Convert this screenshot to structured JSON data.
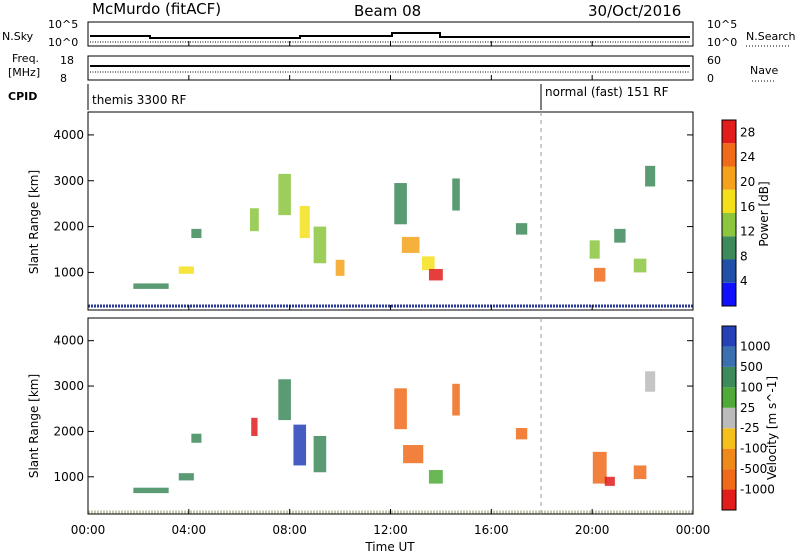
{
  "header": {
    "left_title": "McMurdo (fitACF)",
    "center_title": "Beam 08",
    "right_title": "30/Oct/2016"
  },
  "noise_panel": {
    "left_label": "N.Sky",
    "right_label": "N.Search",
    "left_ticks": [
      "10^5",
      "10^0"
    ],
    "right_ticks": [
      "10^5",
      "10^0"
    ]
  },
  "freq_panel": {
    "left_label_top": "Freq.",
    "left_label_bottom": "[MHz]",
    "right_label": "Nave",
    "left_ticks": [
      "18",
      "8"
    ],
    "right_ticks": [
      "60",
      "0"
    ]
  },
  "cpid_panel": {
    "label": "CPID",
    "mode_1": "themis 3300 RF",
    "mode_2": "normal (fast) 151 RF"
  },
  "x_axis": {
    "label": "Time UT",
    "ticks": [
      "00:00",
      "04:00",
      "08:00",
      "12:00",
      "16:00",
      "20:00",
      "00:00"
    ]
  },
  "chart_data": [
    {
      "type": "heatmap",
      "title": "",
      "xlabel": "Time UT",
      "ylabel": "Slant Range [km]",
      "x_ticks": [
        "00:00",
        "04:00",
        "08:00",
        "12:00",
        "16:00",
        "20:00",
        "00:00"
      ],
      "y_ticks": [
        1000,
        2000,
        3000,
        4000
      ],
      "xlim_hours": [
        0,
        24
      ],
      "ylim_km": [
        180,
        4500
      ],
      "colorbar_label": "Power [dB]",
      "colorbar_ticks": [
        4,
        8,
        12,
        16,
        20,
        24,
        28
      ],
      "colorbar_range": [
        0,
        30
      ],
      "colors": [
        "#1010ff",
        "#2050a8",
        "#3d8a5a",
        "#8cc63f",
        "#f3e01a",
        "#f4a21c",
        "#ef6b1a",
        "#e21b1b"
      ],
      "patches": [
        {
          "t": 2.5,
          "r": 700,
          "w": 1.4,
          "h": 120,
          "v": 8
        },
        {
          "t": 3.9,
          "r": 1050,
          "w": 0.6,
          "h": 160,
          "v": 16
        },
        {
          "t": 4.3,
          "r": 1850,
          "w": 0.4,
          "h": 200,
          "v": 10
        },
        {
          "t": 6.6,
          "r": 2150,
          "w": 0.35,
          "h": 500,
          "v": 14
        },
        {
          "t": 7.8,
          "r": 2700,
          "w": 0.5,
          "h": 900,
          "v": 12
        },
        {
          "t": 8.6,
          "r": 2100,
          "w": 0.4,
          "h": 700,
          "v": 18
        },
        {
          "t": 9.2,
          "r": 1600,
          "w": 0.5,
          "h": 800,
          "v": 12
        },
        {
          "t": 10.0,
          "r": 1100,
          "w": 0.35,
          "h": 350,
          "v": 22
        },
        {
          "t": 12.4,
          "r": 2500,
          "w": 0.5,
          "h": 900,
          "v": 10
        },
        {
          "t": 12.8,
          "r": 1600,
          "w": 0.7,
          "h": 350,
          "v": 20
        },
        {
          "t": 13.5,
          "r": 1200,
          "w": 0.5,
          "h": 300,
          "v": 16
        },
        {
          "t": 13.8,
          "r": 950,
          "w": 0.55,
          "h": 250,
          "v": 28
        },
        {
          "t": 14.6,
          "r": 2700,
          "w": 0.3,
          "h": 700,
          "v": 8
        },
        {
          "t": 17.2,
          "r": 1950,
          "w": 0.45,
          "h": 250,
          "v": 8
        },
        {
          "t": 20.1,
          "r": 1500,
          "w": 0.4,
          "h": 400,
          "v": 14
        },
        {
          "t": 20.3,
          "r": 950,
          "w": 0.45,
          "h": 300,
          "v": 26
        },
        {
          "t": 21.1,
          "r": 1800,
          "w": 0.45,
          "h": 300,
          "v": 10
        },
        {
          "t": 21.9,
          "r": 1150,
          "w": 0.5,
          "h": 300,
          "v": 14
        },
        {
          "t": 22.3,
          "r": 3100,
          "w": 0.4,
          "h": 450,
          "v": 8
        }
      ]
    },
    {
      "type": "heatmap",
      "title": "",
      "xlabel": "Time UT",
      "ylabel": "Slant Range [km]",
      "x_ticks": [
        "00:00",
        "04:00",
        "08:00",
        "12:00",
        "16:00",
        "20:00",
        "00:00"
      ],
      "y_ticks": [
        1000,
        2000,
        3000,
        4000
      ],
      "xlim_hours": [
        0,
        24
      ],
      "ylim_km": [
        180,
        4500
      ],
      "colorbar_label": "Velocity [m s^-1]",
      "colorbar_ticks": [
        "1000",
        "500",
        "100",
        "25",
        "-25",
        "-100",
        "-500",
        "-1000"
      ],
      "colors": [
        "#2441b8",
        "#3a6fb0",
        "#3d8a5a",
        "#4faa3a",
        "#bbbbbb",
        "#f6c01a",
        "#ef8a1a",
        "#ef6b1a",
        "#e21b1b"
      ],
      "patches": [
        {
          "t": 2.5,
          "r": 700,
          "w": 1.4,
          "h": 120,
          "c": 2
        },
        {
          "t": 3.9,
          "r": 1000,
          "w": 0.6,
          "h": 160,
          "c": 2
        },
        {
          "t": 4.3,
          "r": 1850,
          "w": 0.4,
          "h": 200,
          "c": 2
        },
        {
          "t": 6.6,
          "r": 2100,
          "w": 0.25,
          "h": 400,
          "c": 8
        },
        {
          "t": 7.8,
          "r": 2700,
          "w": 0.5,
          "h": 900,
          "c": 2
        },
        {
          "t": 8.4,
          "r": 1700,
          "w": 0.5,
          "h": 900,
          "c": 0
        },
        {
          "t": 9.2,
          "r": 1500,
          "w": 0.5,
          "h": 800,
          "c": 2
        },
        {
          "t": 12.4,
          "r": 2500,
          "w": 0.5,
          "h": 900,
          "c": 7
        },
        {
          "t": 12.9,
          "r": 1500,
          "w": 0.8,
          "h": 400,
          "c": 7
        },
        {
          "t": 13.8,
          "r": 1000,
          "w": 0.55,
          "h": 300,
          "c": 3
        },
        {
          "t": 14.6,
          "r": 2700,
          "w": 0.3,
          "h": 700,
          "c": 7
        },
        {
          "t": 17.2,
          "r": 1950,
          "w": 0.45,
          "h": 250,
          "c": 7
        },
        {
          "t": 20.3,
          "r": 1200,
          "w": 0.55,
          "h": 700,
          "c": 7
        },
        {
          "t": 20.7,
          "r": 900,
          "w": 0.4,
          "h": 200,
          "c": 8
        },
        {
          "t": 21.9,
          "r": 1100,
          "w": 0.5,
          "h": 300,
          "c": 7
        },
        {
          "t": 22.3,
          "r": 3100,
          "w": 0.4,
          "h": 450,
          "c": 4
        }
      ]
    }
  ]
}
